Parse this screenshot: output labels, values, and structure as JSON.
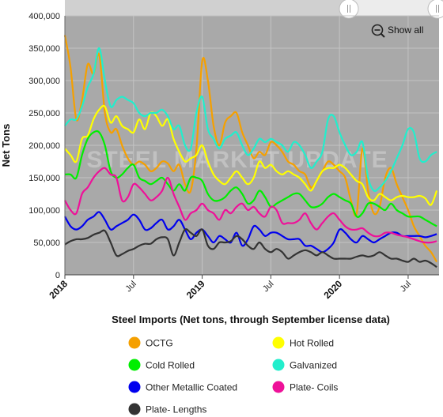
{
  "chart_data": {
    "type": "line",
    "ylabel": "Net Tons",
    "legend_title": "Steel Imports (Net tons, through September license data)",
    "show_all_label": "Show all",
    "watermark": "STEEL MARKET UPDATE",
    "ylim": [
      0,
      400000
    ],
    "yticks": [
      0,
      50000,
      100000,
      150000,
      200000,
      250000,
      300000,
      350000,
      400000
    ],
    "ytick_labels": [
      "0",
      "50,000",
      "100,000",
      "150,000",
      "200,000",
      "250,000",
      "300,000",
      "350,000",
      "400,000"
    ],
    "x_unit": "months since Jan 2018",
    "xlim": [
      0,
      32.7
    ],
    "xticks": [
      {
        "x": 0,
        "label": "2018",
        "major": true
      },
      {
        "x": 6,
        "label": "Jul",
        "major": false
      },
      {
        "x": 12,
        "label": "2019",
        "major": true
      },
      {
        "x": 18,
        "label": "Jul",
        "major": false
      },
      {
        "x": 24,
        "label": "2020",
        "major": true
      },
      {
        "x": 30,
        "label": "Jul",
        "major": false
      }
    ],
    "grid": true,
    "legend_position": "bottom",
    "x": [
      0,
      0.5,
      1,
      1.5,
      2,
      2.5,
      3,
      3.5,
      4,
      4.5,
      5,
      5.5,
      6,
      6.5,
      7,
      7.5,
      8,
      8.5,
      9,
      9.5,
      10,
      10.5,
      11,
      11.5,
      12,
      12.5,
      13,
      13.5,
      14,
      14.5,
      15,
      15.5,
      16,
      16.5,
      17,
      17.5,
      18,
      18.5,
      19,
      19.5,
      20,
      20.5,
      21,
      21.5,
      22,
      22.5,
      23,
      23.5,
      24,
      24.5,
      25,
      25.5,
      26,
      26.5,
      27,
      27.5,
      28,
      28.5,
      29,
      29.5,
      30,
      30.5,
      31,
      31.5,
      32,
      32.5
    ],
    "series": [
      {
        "name": "OCTG",
        "color": "#f5a000",
        "values": [
          370000,
          320000,
          240000,
          270000,
          325000,
          310000,
          340000,
          250000,
          220000,
          225000,
          200000,
          180000,
          170000,
          175000,
          170000,
          160000,
          165000,
          175000,
          172000,
          160000,
          170000,
          140000,
          130000,
          195000,
          330000,
          300000,
          230000,
          200000,
          235000,
          245000,
          250000,
          220000,
          200000,
          180000,
          190000,
          185000,
          205000,
          200000,
          190000,
          175000,
          170000,
          160000,
          155000,
          135000,
          145000,
          160000,
          175000,
          170000,
          160000,
          150000,
          115000,
          95000,
          195000,
          130000,
          95000,
          105000,
          150000,
          165000,
          140000,
          120000,
          100000,
          75000,
          60000,
          45000,
          35000,
          20000
        ]
      },
      {
        "name": "Hot Rolled",
        "color": "#ffff00",
        "values": [
          195000,
          185000,
          175000,
          210000,
          215000,
          240000,
          255000,
          260000,
          235000,
          245000,
          230000,
          225000,
          220000,
          240000,
          225000,
          250000,
          245000,
          230000,
          240000,
          210000,
          190000,
          175000,
          180000,
          185000,
          200000,
          175000,
          155000,
          145000,
          140000,
          150000,
          160000,
          150000,
          140000,
          150000,
          175000,
          165000,
          170000,
          160000,
          155000,
          160000,
          155000,
          150000,
          140000,
          130000,
          145000,
          160000,
          165000,
          165000,
          170000,
          165000,
          155000,
          145000,
          140000,
          120000,
          115000,
          125000,
          120000,
          115000,
          120000,
          122000,
          120000,
          120000,
          122000,
          118000,
          108000,
          130000
        ]
      },
      {
        "name": "Cold Rolled",
        "color": "#00ee00",
        "values": [
          155000,
          155000,
          150000,
          185000,
          210000,
          220000,
          220000,
          200000,
          160000,
          150000,
          155000,
          165000,
          170000,
          150000,
          145000,
          140000,
          145000,
          150000,
          140000,
          130000,
          140000,
          130000,
          150000,
          150000,
          145000,
          125000,
          115000,
          115000,
          120000,
          130000,
          135000,
          125000,
          110000,
          115000,
          130000,
          120000,
          105000,
          110000,
          115000,
          120000,
          125000,
          125000,
          115000,
          105000,
          105000,
          110000,
          120000,
          125000,
          120000,
          115000,
          110000,
          90000,
          95000,
          110000,
          110000,
          105000,
          100000,
          110000,
          100000,
          95000,
          90000,
          90000,
          90000,
          85000,
          80000,
          75000
        ]
      },
      {
        "name": "Galvanized",
        "color": "#22eecc",
        "values": [
          230000,
          240000,
          240000,
          260000,
          290000,
          310000,
          350000,
          300000,
          260000,
          270000,
          275000,
          270000,
          265000,
          250000,
          245000,
          250000,
          250000,
          255000,
          245000,
          225000,
          230000,
          200000,
          195000,
          250000,
          275000,
          225000,
          210000,
          195000,
          210000,
          215000,
          220000,
          200000,
          185000,
          195000,
          210000,
          205000,
          210000,
          205000,
          200000,
          190000,
          205000,
          200000,
          185000,
          165000,
          175000,
          190000,
          240000,
          245000,
          220000,
          200000,
          185000,
          190000,
          205000,
          150000,
          130000,
          135000,
          145000,
          160000,
          180000,
          200000,
          225000,
          220000,
          180000,
          175000,
          185000,
          190000
        ]
      },
      {
        "name": "Other Metallic Coated",
        "color": "#0000ee",
        "values": [
          90000,
          75000,
          70000,
          75000,
          85000,
          90000,
          97000,
          85000,
          70000,
          75000,
          80000,
          85000,
          93000,
          85000,
          70000,
          72000,
          80000,
          85000,
          70000,
          75000,
          85000,
          70000,
          55000,
          65000,
          70000,
          60000,
          50000,
          60000,
          55000,
          50000,
          65000,
          45000,
          55000,
          75000,
          70000,
          60000,
          65000,
          65000,
          60000,
          55000,
          55000,
          55000,
          45000,
          45000,
          40000,
          35000,
          40000,
          50000,
          70000,
          65000,
          55000,
          50000,
          60000,
          55000,
          50000,
          55000,
          60000,
          65000,
          65000,
          60000,
          60000,
          60000,
          60000,
          58000,
          60000,
          63000
        ]
      },
      {
        "name": "Plate- Coils",
        "color": "#ee1199",
        "values": [
          115000,
          100000,
          95000,
          125000,
          135000,
          150000,
          160000,
          165000,
          155000,
          150000,
          115000,
          120000,
          140000,
          135000,
          125000,
          115000,
          120000,
          130000,
          150000,
          125000,
          105000,
          85000,
          95000,
          100000,
          110000,
          100000,
          95000,
          85000,
          100000,
          95000,
          105000,
          110000,
          100000,
          105000,
          95000,
          90000,
          105000,
          100000,
          80000,
          80000,
          80000,
          85000,
          95000,
          80000,
          70000,
          80000,
          90000,
          95000,
          85000,
          75000,
          70000,
          70000,
          72000,
          65000,
          60000,
          60000,
          65000,
          65000,
          62000,
          60000,
          58000,
          55000,
          52000,
          50000,
          50000,
          52000
        ]
      },
      {
        "name": "Plate- Lengths",
        "color": "#333333",
        "values": [
          47000,
          52000,
          55000,
          55000,
          57000,
          62000,
          65000,
          68000,
          50000,
          30000,
          32000,
          37000,
          40000,
          45000,
          48000,
          48000,
          55000,
          58000,
          55000,
          30000,
          50000,
          70000,
          65000,
          60000,
          70000,
          45000,
          40000,
          50000,
          50000,
          52000,
          60000,
          55000,
          45000,
          40000,
          50000,
          40000,
          35000,
          40000,
          35000,
          25000,
          30000,
          35000,
          38000,
          35000,
          30000,
          35000,
          30000,
          25000,
          25000,
          25000,
          25000,
          28000,
          30000,
          28000,
          30000,
          35000,
          30000,
          25000,
          25000,
          22000,
          20000,
          25000,
          20000,
          22000,
          18000,
          12000
        ]
      }
    ]
  }
}
